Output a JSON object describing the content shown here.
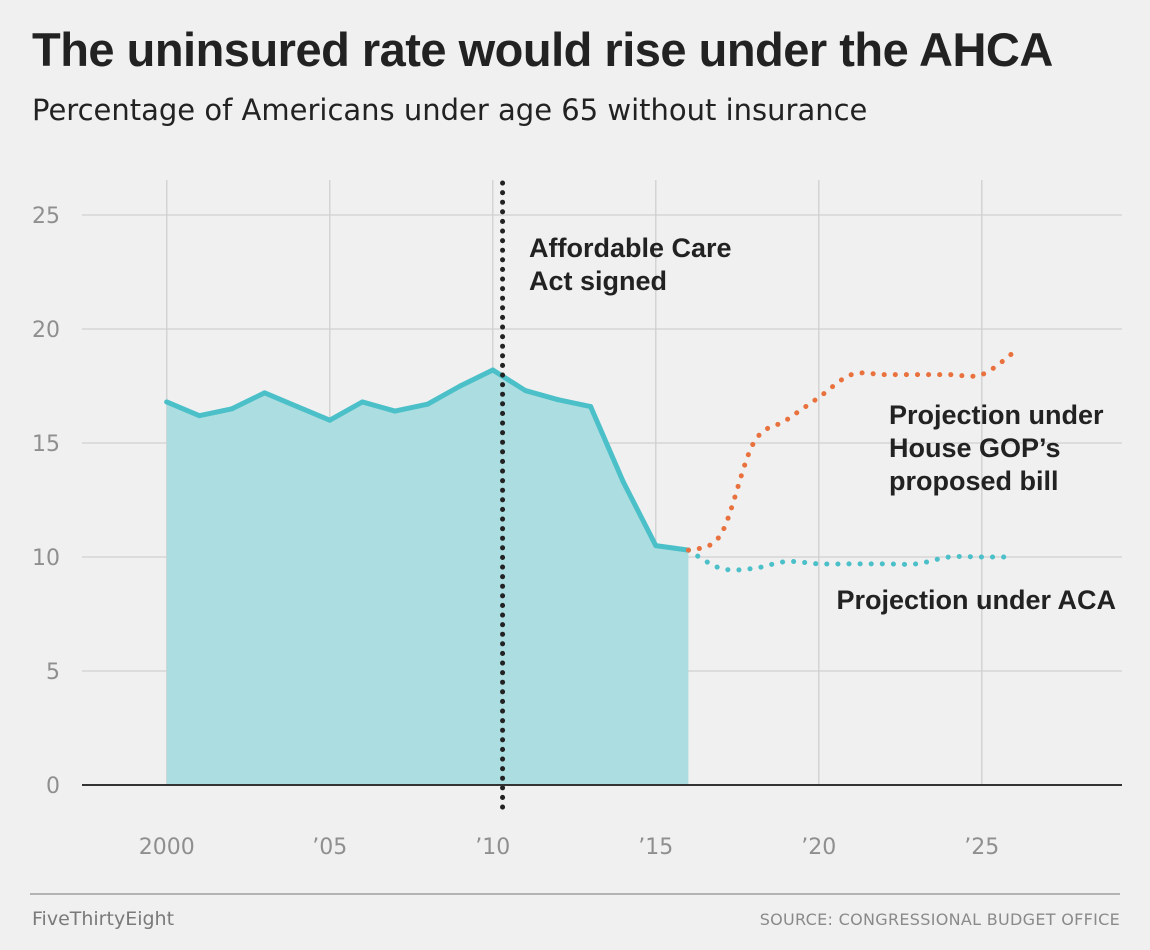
{
  "header": {
    "title": "The uninsured rate would rise under the AHCA",
    "subtitle": "Percentage of Americans under age 65 without insurance"
  },
  "footer": {
    "brand": "FiveThirtyEight",
    "source": "SOURCE: CONGRESSIONAL BUDGET OFFICE"
  },
  "colors": {
    "historical": "#4bc0c8",
    "historical_fill": "#acdde0",
    "aca": "#4bc0c8",
    "ahca": "#e9713d",
    "event_line": "#222222",
    "grid": "#cfcfcf",
    "axis": "#333333",
    "tick_text": "#8f8f8f"
  },
  "chart_data": {
    "type": "line",
    "xlim": [
      1997.4,
      2029.3
    ],
    "ylim": [
      0,
      25
    ],
    "x_ticks": [
      {
        "value": 2000,
        "label": "2000"
      },
      {
        "value": 2005,
        "label": "’05"
      },
      {
        "value": 2010,
        "label": "’10"
      },
      {
        "value": 2015,
        "label": "’15"
      },
      {
        "value": 2020,
        "label": "’20"
      },
      {
        "value": 2025,
        "label": "’25"
      }
    ],
    "y_ticks": [
      {
        "value": 0,
        "label": "0"
      },
      {
        "value": 5,
        "label": "5"
      },
      {
        "value": 10,
        "label": "10"
      },
      {
        "value": 15,
        "label": "15"
      },
      {
        "value": 20,
        "label": "20"
      },
      {
        "value": 25,
        "label": "25"
      }
    ],
    "grid": true,
    "series": [
      {
        "style": "solid-area",
        "x": [
          2000,
          2001,
          2002,
          2003,
          2004,
          2005,
          2006,
          2007,
          2008,
          2009,
          2010,
          2011,
          2012,
          2013,
          2014,
          2015,
          2016
        ],
        "values": [
          16.8,
          16.2,
          16.5,
          17.2,
          16.6,
          16.0,
          16.8,
          16.4,
          16.7,
          17.5,
          18.2,
          17.3,
          16.9,
          16.6,
          13.3,
          10.5,
          10.3
        ]
      },
      {
        "name": "Projection under ACA",
        "style": "dotted",
        "x": [
          2016,
          2017,
          2018,
          2019,
          2020,
          2021,
          2022,
          2023,
          2024,
          2025,
          2026
        ],
        "values": [
          10.3,
          9.5,
          9.5,
          9.8,
          9.7,
          9.7,
          9.7,
          9.7,
          10.0,
          10.0,
          10.0
        ]
      },
      {
        "name": "Projection under House GOP’s proposed bill",
        "style": "dotted",
        "x": [
          2016,
          2017,
          2018,
          2019,
          2020,
          2021,
          2022,
          2023,
          2024,
          2025,
          2026
        ],
        "values": [
          10.3,
          11.0,
          15.0,
          16.0,
          17.0,
          18.0,
          18.0,
          18.0,
          18.0,
          18.0,
          19.0
        ]
      }
    ],
    "events": [
      {
        "x": 2010.3,
        "label_lines": [
          "Affordable Care",
          "Act signed"
        ]
      }
    ],
    "annotations": [
      {
        "series": 2,
        "lines": [
          "Projection under",
          "House GOP’s",
          "proposed bill"
        ]
      },
      {
        "series": 1,
        "lines": [
          "Projection under ACA"
        ]
      }
    ]
  }
}
